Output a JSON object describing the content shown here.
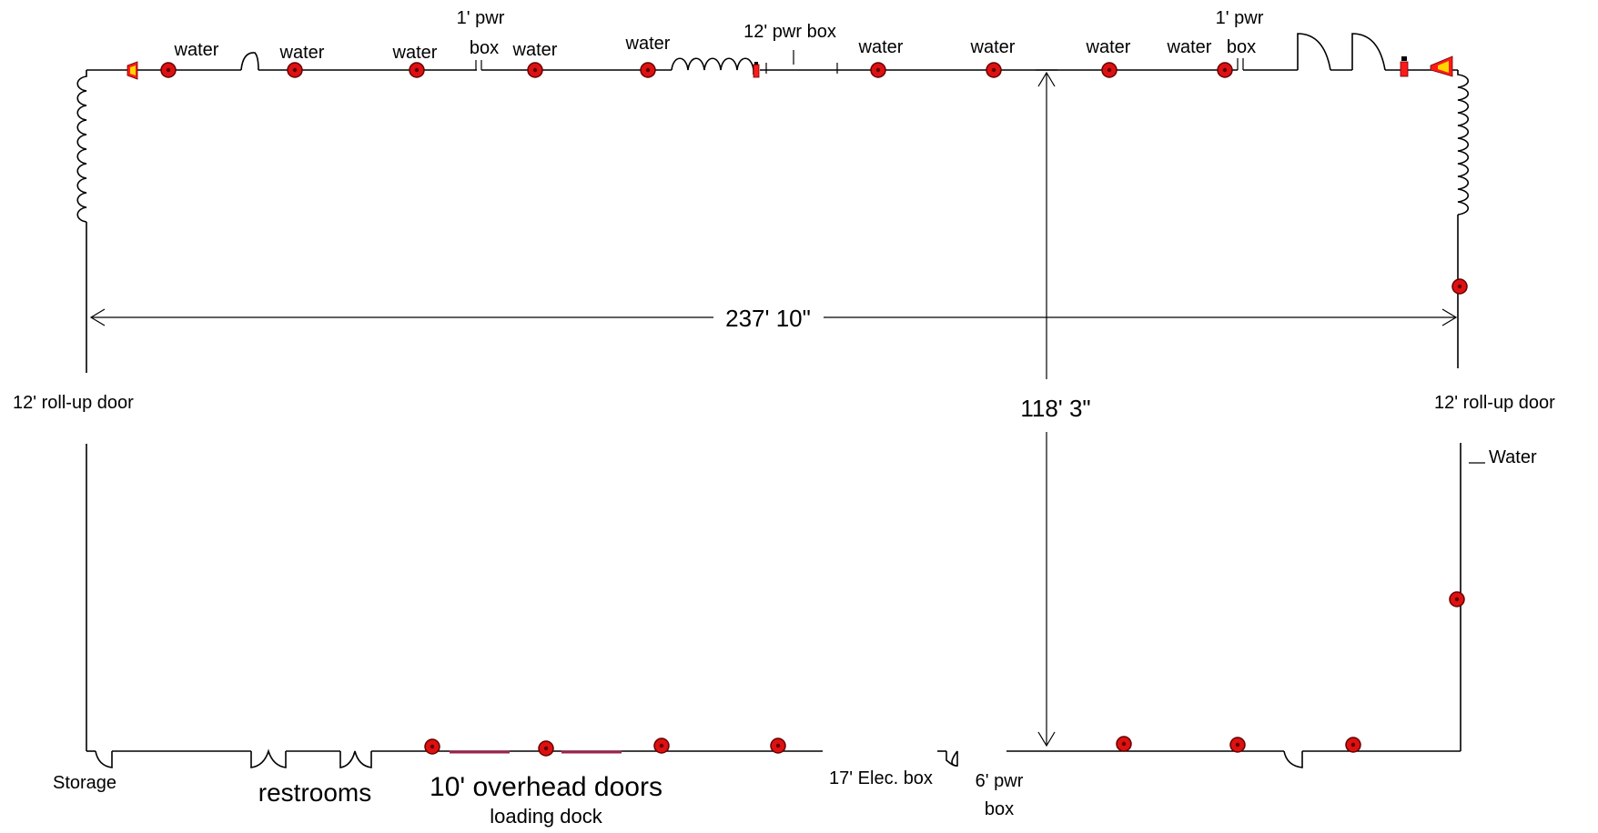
{
  "colors": {
    "wall": "#000000",
    "fixture_fill": "#dd1111",
    "fixture_stroke": "#660000",
    "extinguisher": "#ff1a1a",
    "alarm_yellow": "#ffd600",
    "overhead_door": "#a0204a",
    "background": "#ffffff"
  },
  "icons": {
    "water_fixture": "red-circle",
    "fire_extinguisher": "extinguisher-icon",
    "alarm_horn": "horn-icon",
    "roll_up_door": "scalloped-wall-icon",
    "door_swing": "door-arc-icon"
  },
  "dimensions": {
    "width": "237' 10\"",
    "depth": "118'  3\""
  },
  "labels": {
    "top_water": [
      "water",
      "water",
      "water",
      "water",
      "water",
      "water",
      "water",
      "water",
      "water"
    ],
    "top_pwr_1": {
      "line1": "1' pwr",
      "line2": "box"
    },
    "top_pwr_12": "12' pwr box",
    "top_pwr_1b": {
      "line1": "1' pwr",
      "line2": "box"
    },
    "left_door": "12' roll-up door",
    "right_door": "12' roll-up door",
    "right_water": "Water",
    "storage": "Storage",
    "restrooms": "restrooms",
    "overhead_doors": "10' overhead doors",
    "loading_dock": "loading dock",
    "elec_box": "17' Elec. box",
    "pwr_box_6": {
      "line1": "6' pwr",
      "line2": "box"
    }
  }
}
